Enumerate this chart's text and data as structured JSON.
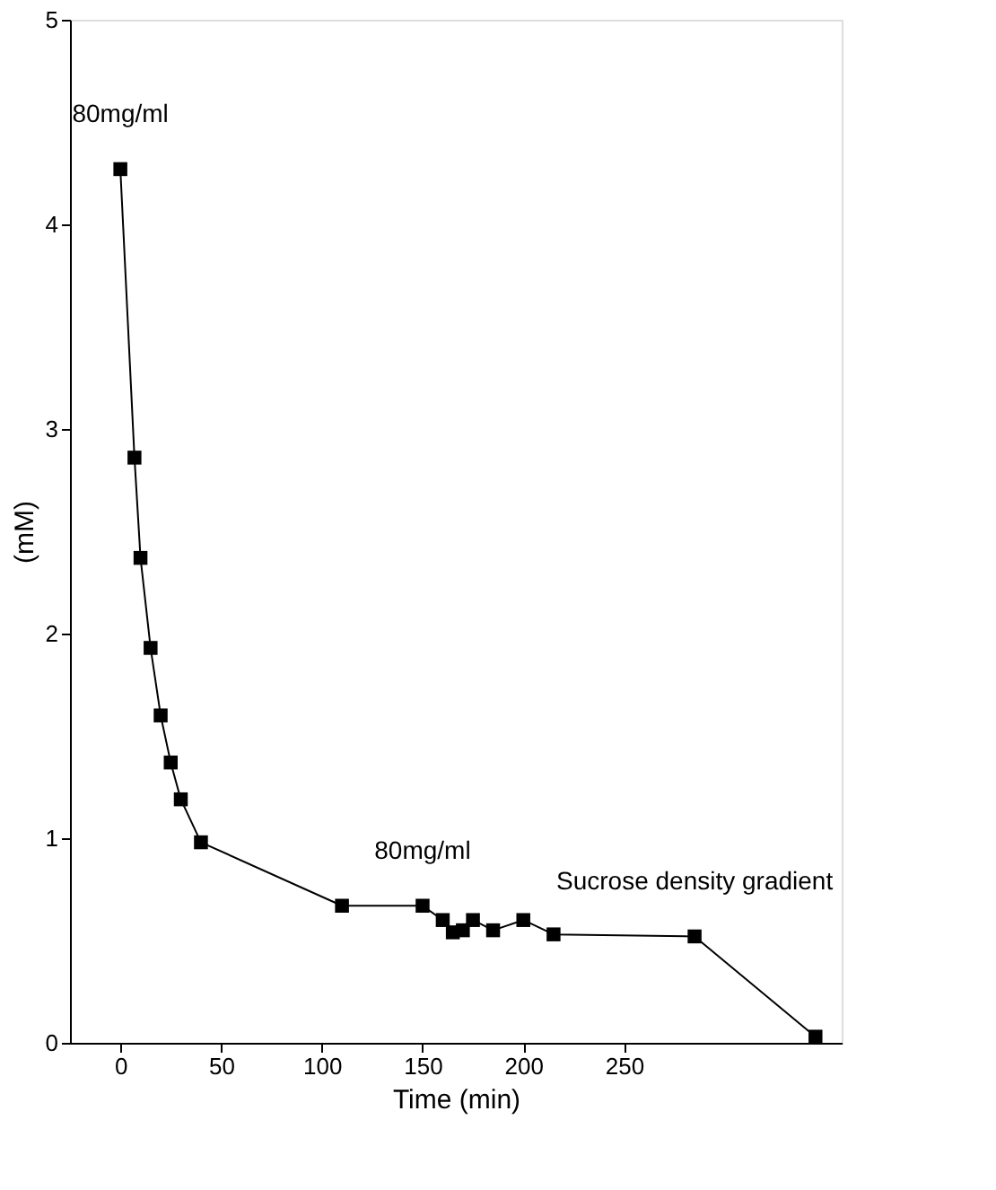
{
  "chart_data": {
    "type": "line",
    "xlabel": "Time (min)",
    "ylabel": "(mM)",
    "x": [
      0,
      7,
      10,
      15,
      20,
      25,
      30,
      40,
      110,
      150,
      160,
      165,
      170,
      175,
      185,
      200,
      215,
      285,
      345
    ],
    "values": [
      4.27,
      2.86,
      2.37,
      1.93,
      1.6,
      1.37,
      1.19,
      0.98,
      0.67,
      0.67,
      0.6,
      0.54,
      0.55,
      0.6,
      0.55,
      0.6,
      0.53,
      0.52,
      0.03
    ],
    "color": "#000000",
    "marker": "square",
    "line_style": "solid",
    "grid": false,
    "xlim": [
      -25,
      358
    ],
    "xticks": [
      0,
      50,
      100,
      150,
      200,
      250
    ],
    "ylim": [
      0,
      5
    ],
    "yticks": [
      0,
      1,
      2,
      3,
      4,
      5
    ],
    "annotations": [
      {
        "text": "80mg/ml",
        "x": 0,
        "y": 4.27
      },
      {
        "text": "80mg/ml",
        "x": 150,
        "y": 0.67
      },
      {
        "text": "Sucrose density gradient",
        "x": 285,
        "y": 0.52
      }
    ]
  }
}
